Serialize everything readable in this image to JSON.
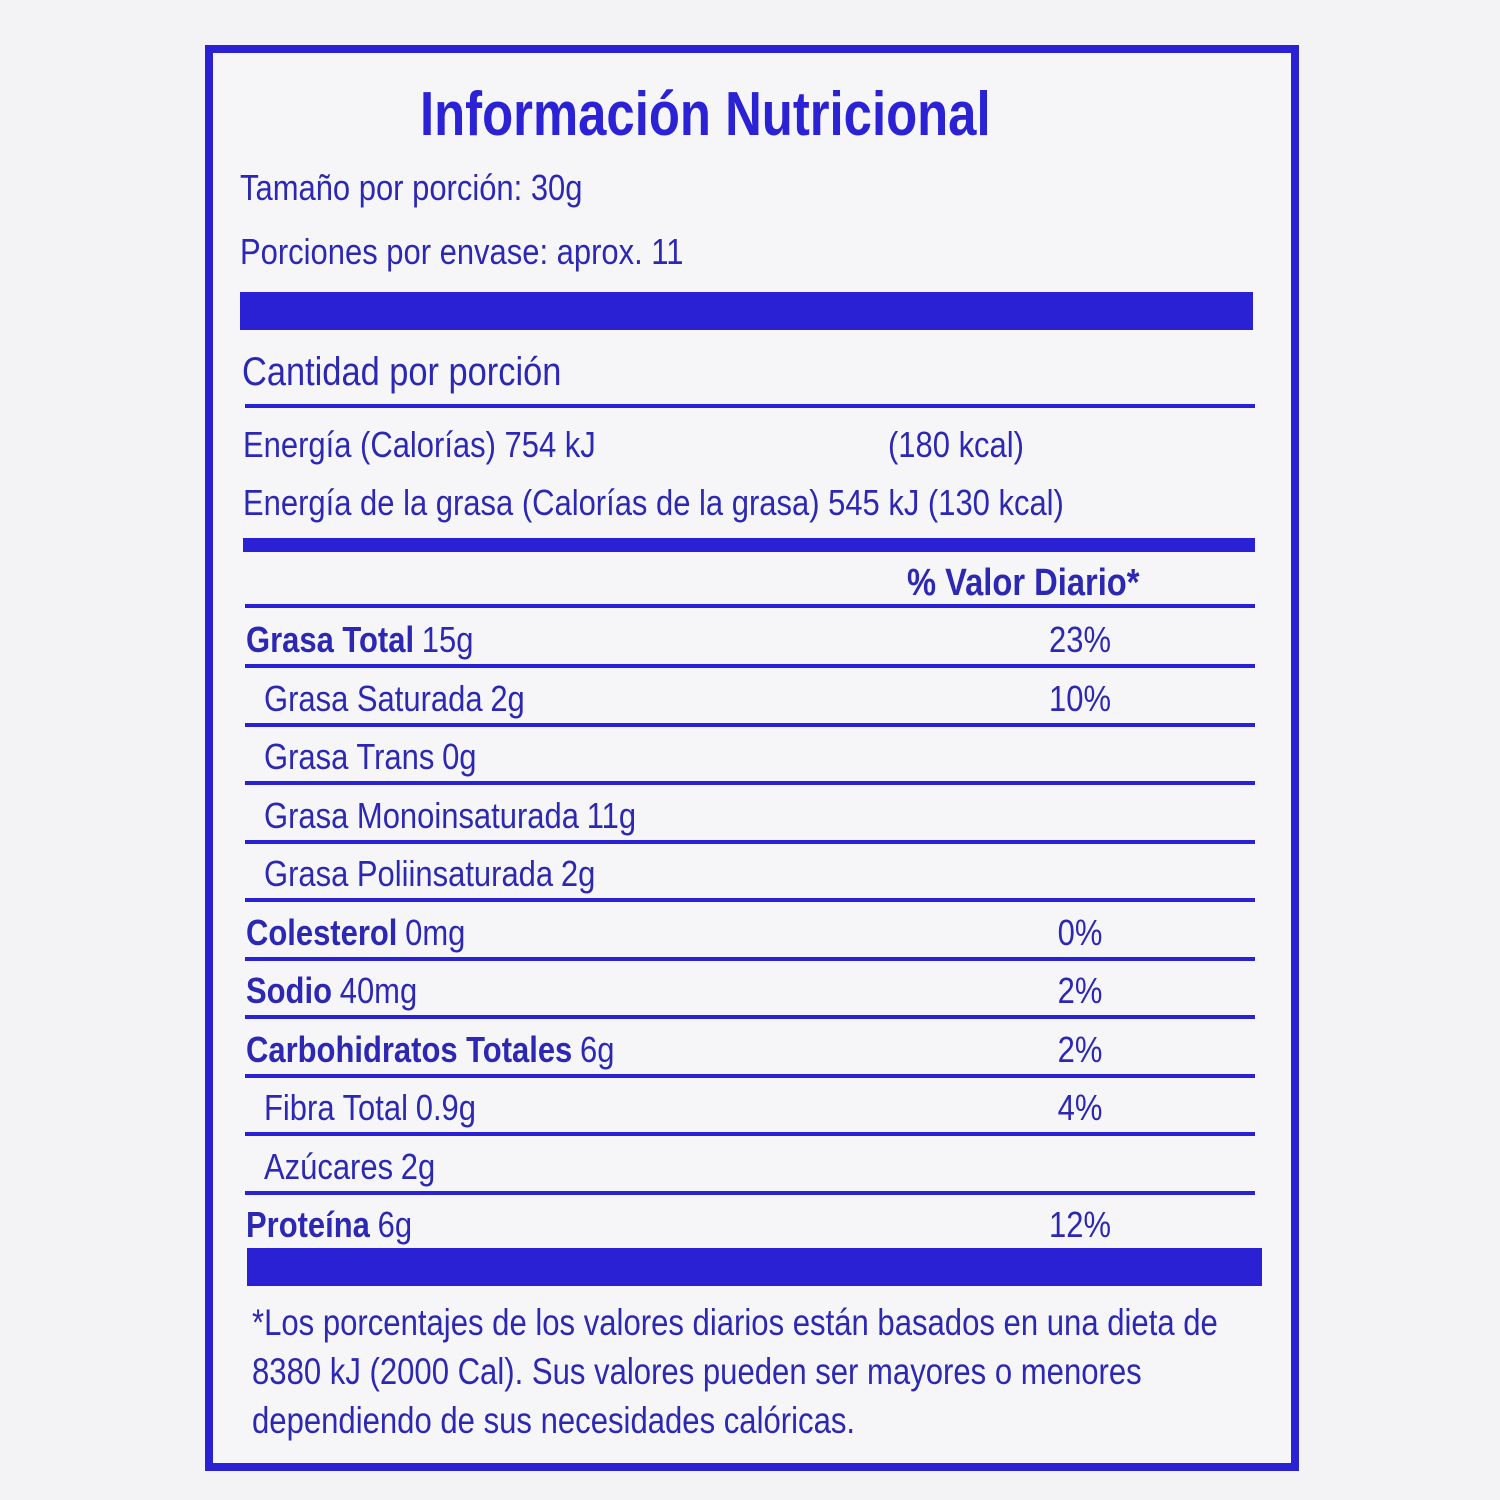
{
  "label": {
    "title": "Información Nutricional",
    "serving_size": "Tamaño por porción: 30g",
    "servings_per_container": "Porciones por envase: aprox. 11",
    "amount_per_serving": "Cantidad por porción",
    "energy": {
      "label": "Energía (Calorías) 754 kJ",
      "kcal": "(180 kcal)"
    },
    "energy_fat": "Energía de la grasa (Calorías de la grasa) 545 kJ (130 kcal)",
    "daily_value_header": "% Valor Diario*",
    "rows": [
      {
        "name": "Grasa Total",
        "amount": "15g",
        "pct": "23%",
        "bold": true
      },
      {
        "name": "Grasa Saturada",
        "amount": "2g",
        "pct": "10%",
        "bold": false
      },
      {
        "name": "Grasa Trans",
        "amount": "0g",
        "pct": "",
        "bold": false
      },
      {
        "name": "Grasa Monoinsaturada",
        "amount": "11g",
        "pct": "",
        "bold": false
      },
      {
        "name": "Grasa Poliinsaturada",
        "amount": "2g",
        "pct": "",
        "bold": false
      },
      {
        "name": "Colesterol",
        "amount": "0mg",
        "pct": "0%",
        "bold": true
      },
      {
        "name": "Sodio",
        "amount": "40mg",
        "pct": "2%",
        "bold": true
      },
      {
        "name": "Carbohidratos Totales",
        "amount": "6g",
        "pct": "2%",
        "bold": true
      },
      {
        "name": "Fibra Total",
        "amount": "0.9g",
        "pct": "4%",
        "bold": false
      },
      {
        "name": "Azúcares",
        "amount": "2g",
        "pct": "",
        "bold": false
      },
      {
        "name": "Proteína",
        "amount": "6g",
        "pct": "12%",
        "bold": true
      }
    ],
    "footnote": [
      "*Los porcentajes de los valores diarios están basados en una dieta de",
      "8380 kJ (2000 Cal). Sus valores pueden ser mayores o menores",
      "dependiendo de sus necesidades calóricas."
    ]
  },
  "colors": {
    "ink": "#2d28b4",
    "accent": "#2a20d4",
    "background": "#f6f6f9"
  }
}
